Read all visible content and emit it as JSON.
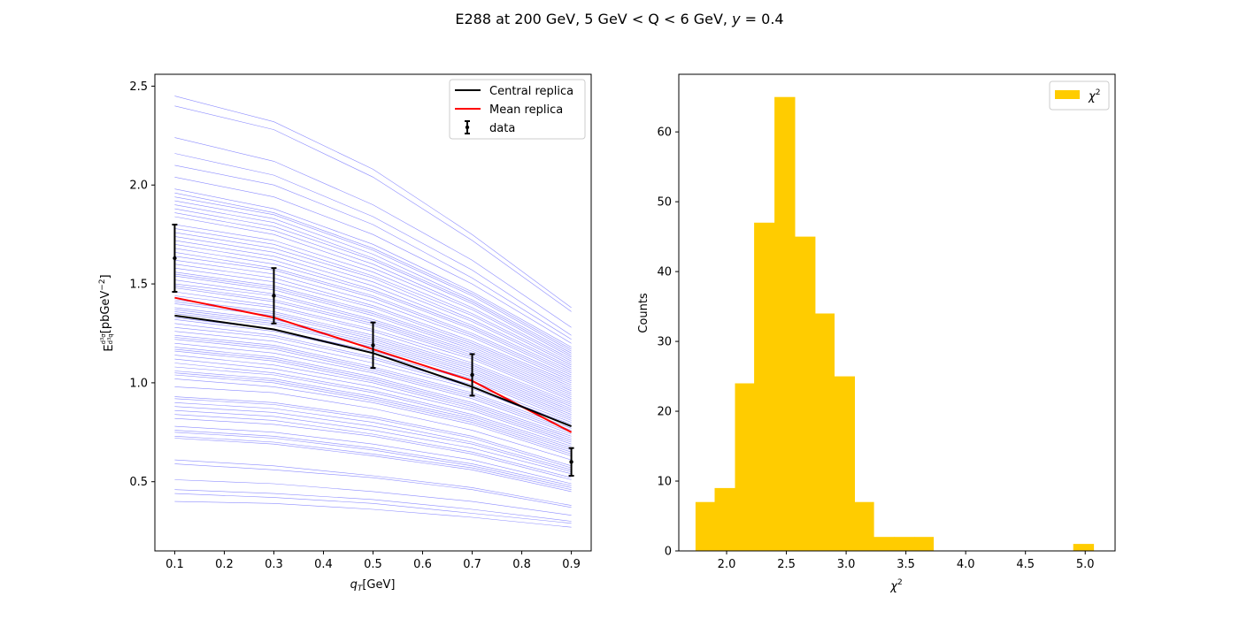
{
  "figure": {
    "title_parts": [
      "E288  at 200 GeV, 5 GeV < Q < 6 GeV, ",
      "y",
      " = 0.4"
    ]
  },
  "chart_data": [
    {
      "type": "line",
      "xlabel_parts": [
        "q",
        "T",
        "[GeV]"
      ],
      "ylabel_parts": [
        "E",
        "d",
        "3",
        "σ",
        "d",
        "3",
        "q",
        "[pbGeV",
        "−2",
        "]"
      ],
      "xlim": [
        0.06,
        0.94
      ],
      "ylim": [
        0.15,
        2.56
      ],
      "xticks": [
        0.1,
        0.2,
        0.3,
        0.4,
        0.5,
        0.6,
        0.7,
        0.8,
        0.9
      ],
      "xtick_labels": [
        "0.1",
        "0.2",
        "0.3",
        "0.4",
        "0.5",
        "0.6",
        "0.7",
        "0.8",
        "0.9"
      ],
      "yticks": [
        0.5,
        1.0,
        1.5,
        2.0,
        2.5
      ],
      "ytick_labels": [
        "0.5",
        "1.0",
        "1.5",
        "2.0",
        "2.5"
      ],
      "x": [
        0.1,
        0.3,
        0.5,
        0.7,
        0.9
      ],
      "legend_position": "top-right",
      "legend": [
        "Central replica",
        "Mean replica",
        "data"
      ],
      "colors": {
        "replica": "#0000ff",
        "central": "#000000",
        "mean": "#ff0000",
        "data": "#000000"
      },
      "series": [
        {
          "name": "Central replica",
          "values": [
            1.34,
            1.27,
            1.15,
            0.98,
            0.78
          ]
        },
        {
          "name": "Mean replica",
          "values": [
            1.43,
            1.33,
            1.17,
            1.01,
            0.75
          ]
        },
        {
          "name": "data",
          "values": [
            1.63,
            1.44,
            1.19,
            1.04,
            0.6
          ],
          "errors": [
            0.17,
            0.14,
            0.115,
            0.105,
            0.07
          ]
        }
      ],
      "replica_series": [
        [
          2.45,
          2.32,
          2.08,
          1.75,
          1.38
        ],
        [
          2.4,
          2.28,
          2.04,
          1.72,
          1.36
        ],
        [
          2.24,
          2.12,
          1.9,
          1.62,
          1.28
        ],
        [
          2.16,
          2.05,
          1.84,
          1.57,
          1.24
        ],
        [
          2.1,
          2.0,
          1.8,
          1.53,
          1.22
        ],
        [
          2.04,
          1.94,
          1.75,
          1.5,
          1.2
        ],
        [
          1.98,
          1.88,
          1.7,
          1.46,
          1.18
        ],
        [
          1.96,
          1.86,
          1.68,
          1.45,
          1.17
        ],
        [
          1.94,
          1.85,
          1.67,
          1.44,
          1.16
        ],
        [
          1.92,
          1.83,
          1.65,
          1.42,
          1.15
        ],
        [
          1.9,
          1.81,
          1.63,
          1.41,
          1.14
        ],
        [
          1.88,
          1.79,
          1.62,
          1.4,
          1.13
        ],
        [
          1.86,
          1.77,
          1.6,
          1.38,
          1.12
        ],
        [
          1.84,
          1.75,
          1.58,
          1.37,
          1.11
        ],
        [
          1.8,
          1.72,
          1.56,
          1.35,
          1.1
        ],
        [
          1.78,
          1.7,
          1.54,
          1.34,
          1.09
        ],
        [
          1.76,
          1.68,
          1.53,
          1.32,
          1.08
        ],
        [
          1.74,
          1.66,
          1.51,
          1.31,
          1.07
        ],
        [
          1.72,
          1.64,
          1.49,
          1.29,
          1.06
        ],
        [
          1.7,
          1.62,
          1.47,
          1.28,
          1.05
        ],
        [
          1.68,
          1.6,
          1.46,
          1.27,
          1.04
        ],
        [
          1.66,
          1.58,
          1.44,
          1.25,
          1.03
        ],
        [
          1.64,
          1.57,
          1.43,
          1.24,
          1.02
        ],
        [
          1.62,
          1.55,
          1.41,
          1.23,
          1.01
        ],
        [
          1.6,
          1.53,
          1.39,
          1.21,
          1.0
        ],
        [
          1.58,
          1.51,
          1.38,
          1.2,
          0.99
        ],
        [
          1.56,
          1.49,
          1.36,
          1.19,
          0.98
        ],
        [
          1.55,
          1.48,
          1.35,
          1.18,
          0.97
        ],
        [
          1.54,
          1.47,
          1.34,
          1.17,
          0.96
        ],
        [
          1.52,
          1.45,
          1.32,
          1.16,
          0.95
        ],
        [
          1.5,
          1.44,
          1.31,
          1.15,
          0.94
        ],
        [
          1.49,
          1.42,
          1.3,
          1.14,
          0.93
        ],
        [
          1.48,
          1.41,
          1.29,
          1.13,
          0.92
        ],
        [
          1.46,
          1.39,
          1.27,
          1.12,
          0.91
        ],
        [
          1.44,
          1.38,
          1.26,
          1.1,
          0.9
        ],
        [
          1.42,
          1.36,
          1.24,
          1.09,
          0.89
        ],
        [
          1.41,
          1.35,
          1.23,
          1.08,
          0.88
        ],
        [
          1.4,
          1.34,
          1.22,
          1.07,
          0.87
        ],
        [
          1.38,
          1.32,
          1.21,
          1.06,
          0.86
        ],
        [
          1.37,
          1.31,
          1.2,
          1.05,
          0.85
        ],
        [
          1.36,
          1.3,
          1.19,
          1.04,
          0.84
        ],
        [
          1.35,
          1.29,
          1.18,
          1.03,
          0.83
        ],
        [
          1.33,
          1.27,
          1.16,
          1.02,
          0.82
        ],
        [
          1.32,
          1.26,
          1.15,
          1.01,
          0.81
        ],
        [
          1.3,
          1.24,
          1.13,
          0.99,
          0.8
        ],
        [
          1.28,
          1.23,
          1.12,
          0.98,
          0.79
        ],
        [
          1.26,
          1.21,
          1.1,
          0.97,
          0.78
        ],
        [
          1.24,
          1.19,
          1.08,
          0.95,
          0.77
        ],
        [
          1.23,
          1.18,
          1.07,
          0.94,
          0.76
        ],
        [
          1.22,
          1.17,
          1.06,
          0.93,
          0.75
        ],
        [
          1.2,
          1.15,
          1.05,
          0.92,
          0.74
        ],
        [
          1.18,
          1.13,
          1.03,
          0.9,
          0.73
        ],
        [
          1.17,
          1.12,
          1.02,
          0.89,
          0.72
        ],
        [
          1.16,
          1.11,
          1.01,
          0.88,
          0.71
        ],
        [
          1.14,
          1.09,
          1.0,
          0.87,
          0.7
        ],
        [
          1.12,
          1.07,
          0.98,
          0.86,
          0.69
        ],
        [
          1.1,
          1.05,
          0.96,
          0.84,
          0.68
        ],
        [
          1.08,
          1.04,
          0.95,
          0.83,
          0.67
        ],
        [
          1.06,
          1.02,
          0.93,
          0.82,
          0.66
        ],
        [
          1.05,
          1.01,
          0.92,
          0.81,
          0.65
        ],
        [
          1.04,
          1.0,
          0.91,
          0.8,
          0.64
        ],
        [
          1.02,
          0.98,
          0.9,
          0.79,
          0.63
        ],
        [
          0.98,
          0.95,
          0.87,
          0.76,
          0.61
        ],
        [
          0.93,
          0.9,
          0.83,
          0.73,
          0.58
        ],
        [
          0.92,
          0.89,
          0.82,
          0.72,
          0.57
        ],
        [
          0.9,
          0.87,
          0.8,
          0.7,
          0.56
        ],
        [
          0.88,
          0.85,
          0.78,
          0.69,
          0.55
        ],
        [
          0.86,
          0.83,
          0.76,
          0.67,
          0.54
        ],
        [
          0.84,
          0.81,
          0.74,
          0.65,
          0.52
        ],
        [
          0.82,
          0.79,
          0.73,
          0.64,
          0.51
        ],
        [
          0.78,
          0.75,
          0.69,
          0.61,
          0.49
        ],
        [
          0.76,
          0.73,
          0.67,
          0.59,
          0.48
        ],
        [
          0.75,
          0.72,
          0.66,
          0.58,
          0.47
        ],
        [
          0.73,
          0.7,
          0.64,
          0.57,
          0.46
        ],
        [
          0.72,
          0.69,
          0.63,
          0.56,
          0.45
        ],
        [
          0.61,
          0.58,
          0.53,
          0.47,
          0.38
        ],
        [
          0.59,
          0.56,
          0.52,
          0.46,
          0.37
        ],
        [
          0.51,
          0.49,
          0.45,
          0.4,
          0.33
        ],
        [
          0.46,
          0.44,
          0.41,
          0.36,
          0.3
        ],
        [
          0.44,
          0.42,
          0.39,
          0.34,
          0.29
        ],
        [
          0.4,
          0.39,
          0.36,
          0.32,
          0.27
        ]
      ]
    },
    {
      "type": "bar",
      "xlabel_parts": [
        "χ",
        "2"
      ],
      "ylabel": "Counts",
      "xlim": [
        1.6,
        5.25
      ],
      "ylim": [
        0,
        68.25
      ],
      "xticks": [
        2.0,
        2.5,
        3.0,
        3.5,
        4.0,
        4.5,
        5.0
      ],
      "xtick_labels": [
        "2.0",
        "2.5",
        "3.0",
        "3.5",
        "4.0",
        "4.5",
        "5.0"
      ],
      "yticks": [
        0,
        10,
        20,
        30,
        40,
        50,
        60
      ],
      "ytick_labels": [
        "0",
        "10",
        "20",
        "30",
        "40",
        "50",
        "60"
      ],
      "bin_edges": [
        1.74,
        1.9,
        2.07,
        2.23,
        2.4,
        2.57,
        2.74,
        2.9,
        3.07,
        3.23,
        3.4,
        3.57,
        3.73,
        3.9,
        4.07,
        4.23,
        4.4,
        4.57,
        4.74,
        4.9,
        5.07
      ],
      "values": [
        7,
        9,
        24,
        47,
        65,
        45,
        34,
        25,
        7,
        2,
        2,
        2,
        0,
        0,
        0,
        0,
        0,
        0,
        0,
        1
      ],
      "legend_position": "top-right",
      "legend_parts": [
        "χ",
        "2"
      ],
      "colors": {
        "bar": "#ffcc00"
      },
      "series": [
        {
          "name": "χ²",
          "values": [
            7,
            9,
            24,
            47,
            65,
            45,
            34,
            25,
            7,
            2,
            2,
            2,
            0,
            0,
            0,
            0,
            0,
            0,
            0,
            1
          ]
        }
      ]
    }
  ]
}
